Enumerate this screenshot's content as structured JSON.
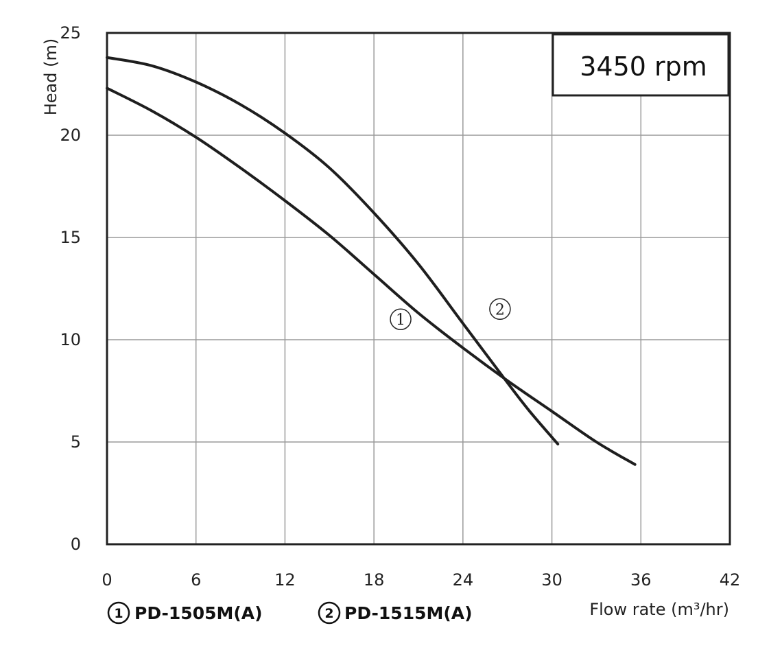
{
  "chart_data": {
    "type": "line",
    "xlabel": "Flow rate (m³/hr)",
    "ylabel": "Head (m)",
    "xlim": [
      0,
      42
    ],
    "ylim": [
      0,
      25
    ],
    "x_ticks": [
      "0",
      "6",
      "12",
      "18",
      "24",
      "30",
      "36",
      "42"
    ],
    "y_ticks": [
      "0",
      "5",
      "10",
      "15",
      "20",
      "25"
    ],
    "grid": true,
    "annotation": "3450 rpm",
    "series": [
      {
        "name": "PD-1505M(A)",
        "marker": "1",
        "x": [
          0,
          3,
          6,
          9,
          12,
          15,
          18,
          21,
          24,
          27,
          30,
          33,
          35.6
        ],
        "y": [
          22.3,
          21.2,
          19.9,
          18.4,
          16.8,
          15.1,
          13.2,
          11.3,
          9.6,
          8.0,
          6.5,
          5.0,
          3.9
        ]
      },
      {
        "name": "PD-1515M(A)",
        "marker": "2",
        "x": [
          0,
          3,
          6,
          9,
          12,
          15,
          18,
          21,
          24,
          27,
          28.5,
          30.4
        ],
        "y": [
          23.8,
          23.4,
          22.6,
          21.5,
          20.1,
          18.4,
          16.2,
          13.7,
          10.8,
          7.9,
          6.5,
          4.9
        ]
      }
    ]
  }
}
